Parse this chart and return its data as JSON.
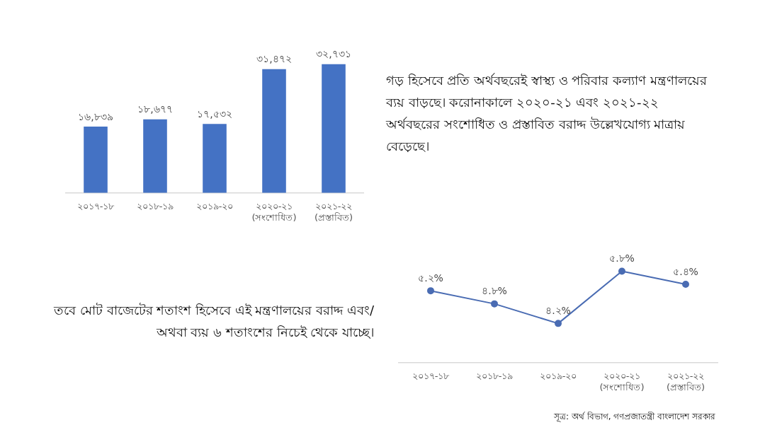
{
  "chart_data": [
    {
      "type": "bar",
      "categories": [
        "২০১৭-১৮",
        "২০১৮-১৯",
        "২০১৯-২০",
        "২০২০-২১ (সংশোধিত)",
        "২০২১-২২ (প্রস্তাবিত)"
      ],
      "values": [
        16839,
        18677,
        17532,
        31472,
        32731
      ],
      "color": "#4472c4",
      "value_labels": [
        "১৬,৮৩৯",
        "১৮,৬৭৭",
        "১৭,৫৩২",
        "৩১,৪৭২",
        "৩২,৭৩১"
      ],
      "annotations": [
        "গড় হিসেবে প্রতি অর্থবছরেই স্বাস্থ্য ও পরিবার কল্যাণ মন্ত্রণালয়ের ব্যয় বাড়ছে। করোনাকালে ২০২০-২১ এবং ২০২১-২২ অর্থবছরের সংশোধিত ও প্রস্তাবিত বরাদ্দ উল্লেখযোগ্য মাত্রায় বেড়েছে।"
      ],
      "tick_labels": "x",
      "grid": false,
      "legend": false
    },
    {
      "type": "line",
      "categories": [
        "২০১৭-১৮",
        "২০১৮-১৯",
        "২০১৯-২০",
        "২০২০-২১ (সংশোধিত)",
        "২০২১-২২ (প্রস্তাবিত)"
      ],
      "values": [
        5.2,
        4.8,
        4.2,
        5.8,
        5.4
      ],
      "color": "#4a6cb3",
      "value_labels": [
        "৫.২%",
        "৪.৮%",
        "৪.২%",
        "৫.৮%",
        "৫.৪%"
      ],
      "annotations": [
        "তবে মোট বাজেটের শতাংশ হিসেবে এই মন্ত্রণালয়ের বরাদ্দ এবং/অথবা ব্যয় ৬ শতাংশের নিচেই থেকে যাচ্ছে।",
        "সূত্র: অর্থ বিভাগ, গণপ্রজাতন্ত্রী বাংলাদেশ সরকার"
      ],
      "tick_labels": "x",
      "grid": false,
      "legend": false,
      "marker": "circle",
      "line_style": "solid"
    }
  ]
}
